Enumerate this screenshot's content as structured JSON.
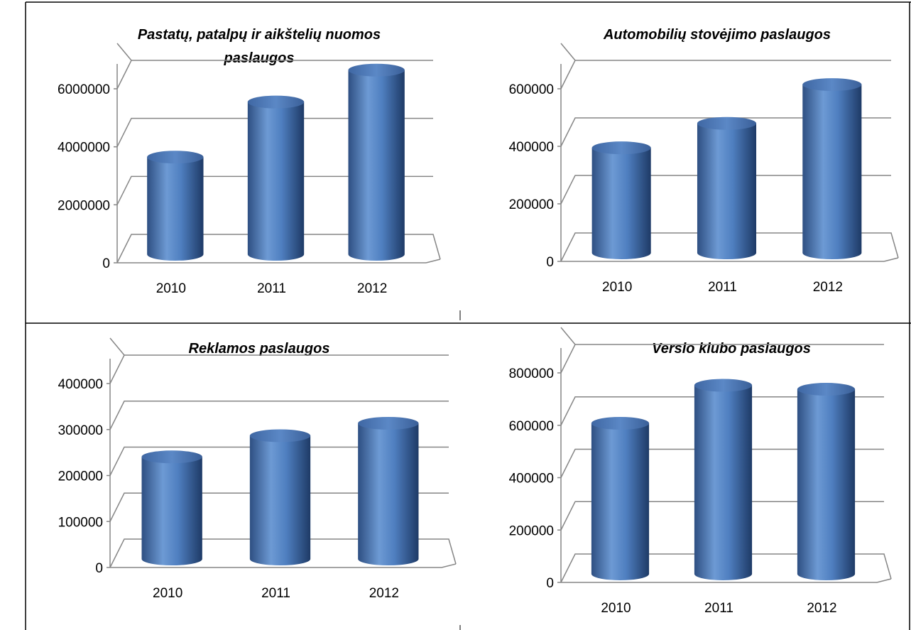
{
  "chart_data": [
    {
      "type": "bar",
      "title": "Pastatų, patalpų ir aikštelių nuomos paslaugos",
      "title_lines": [
        "Pastatų, patalpų ir aikštelių nuomos",
        "paslaugos"
      ],
      "categories": [
        "2010",
        "2011",
        "2012"
      ],
      "values": [
        3350000,
        5250000,
        6350000
      ],
      "yticks": [
        "0",
        "2000000",
        "4000000",
        "6000000"
      ],
      "ylim": [
        0,
        6000000
      ],
      "grid": true,
      "legend": "none",
      "color": "#4f81bd"
    },
    {
      "type": "bar",
      "title": "Automobilių stovėjimo paslaugos",
      "title_lines": [
        "Automobilių stovėjimo paslaugos"
      ],
      "categories": [
        "2010",
        "2011",
        "2012"
      ],
      "values": [
        365000,
        450000,
        585000
      ],
      "yticks": [
        "0",
        "200000",
        "400000",
        "600000"
      ],
      "ylim": [
        0,
        600000
      ],
      "grid": true,
      "legend": "none",
      "color": "#4f81bd"
    },
    {
      "type": "bar",
      "title": "Reklamos paslaugos",
      "title_lines": [
        "Reklamos paslaugos"
      ],
      "categories": [
        "2010",
        "2011",
        "2012"
      ],
      "values": [
        222000,
        268000,
        295000
      ],
      "yticks": [
        "0",
        "100000",
        "200000",
        "300000",
        "400000"
      ],
      "ylim": [
        0,
        400000
      ],
      "grid": true,
      "legend": "none",
      "color": "#4f81bd"
    },
    {
      "type": "bar",
      "title": "Verslo klubo paslaugos",
      "title_lines": [
        "Verslo klubo paslaugos"
      ],
      "categories": [
        "2010",
        "2011",
        "2012"
      ],
      "values": [
        575000,
        720000,
        705000
      ],
      "yticks": [
        "0",
        "200000",
        "400000",
        "600000",
        "800000"
      ],
      "ylim": [
        0,
        800000
      ],
      "grid": true,
      "legend": "none",
      "color": "#4f81bd"
    }
  ]
}
